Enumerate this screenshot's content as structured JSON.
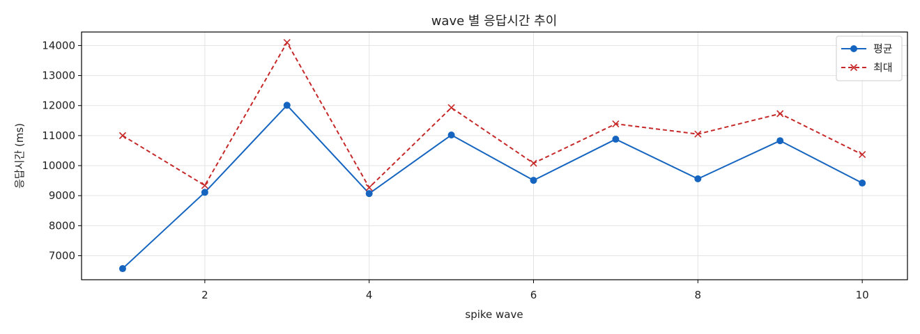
{
  "chart_data": {
    "type": "line",
    "title": "wave 별 응답시간 추이",
    "xlabel": "spike wave",
    "ylabel": "응답시간 (ms)",
    "x": [
      1,
      2,
      3,
      4,
      5,
      6,
      7,
      8,
      9,
      10
    ],
    "xlim": [
      0.5,
      10.55
    ],
    "ylim": [
      6200,
      14450
    ],
    "xticks": [
      2,
      4,
      6,
      8,
      10
    ],
    "yticks": [
      7000,
      8000,
      9000,
      10000,
      11000,
      12000,
      13000,
      14000
    ],
    "grid": true,
    "legend_position": "top-right",
    "series": [
      {
        "name": "평균",
        "color": "#1565c0",
        "marker": "circle",
        "line_style": "solid",
        "values": [
          6570,
          9110,
          12010,
          9070,
          11020,
          9510,
          10880,
          9560,
          10830,
          9420
        ]
      },
      {
        "name": "최대",
        "color": "#c62828",
        "marker": "x",
        "line_style": "dashed",
        "values": [
          11000,
          9340,
          14100,
          9270,
          11930,
          10080,
          11390,
          11050,
          11730,
          10370
        ]
      }
    ]
  }
}
